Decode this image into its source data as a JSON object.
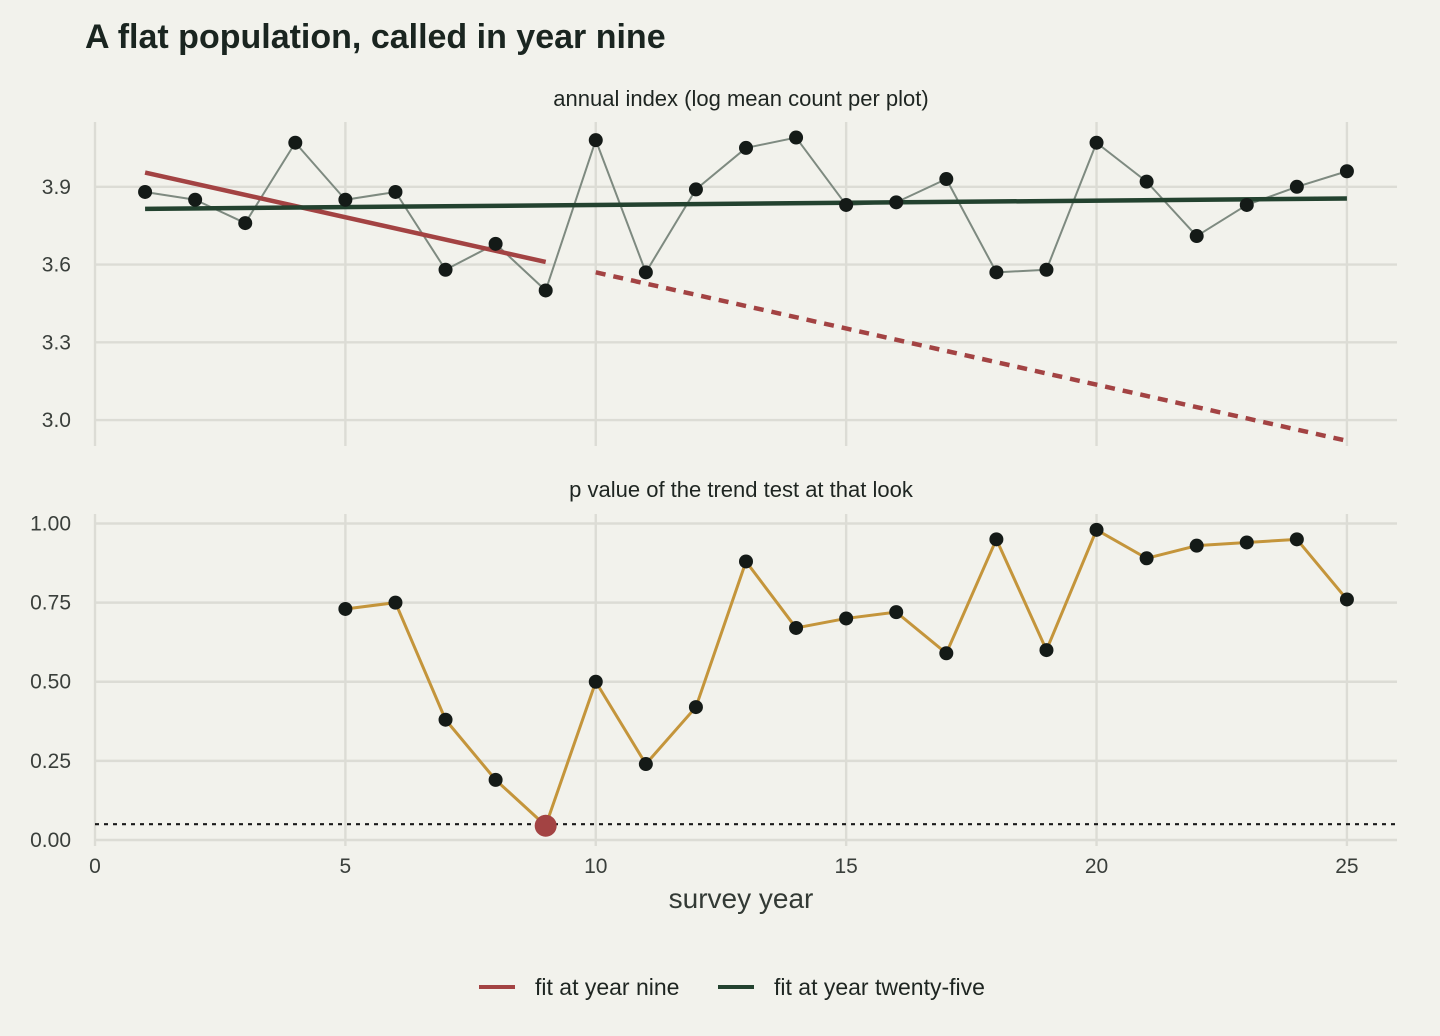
{
  "chart_data": [
    {
      "type": "line",
      "title": "A flat population, called in year nine",
      "subtitle": "annual index (log mean count per plot)",
      "xlabel": "survey year",
      "ylabel": "",
      "xlim": [
        0,
        26
      ],
      "ylim": [
        2.9,
        4.15
      ],
      "x_ticks": [
        0,
        5,
        10,
        15,
        20,
        25
      ],
      "y_ticks": [
        3.0,
        3.3,
        3.6,
        3.9
      ],
      "y_tick_labels": [
        "3.0",
        "3.3",
        "3.6",
        "3.9"
      ],
      "grid": true,
      "series": [
        {
          "color": "#7e8a80",
          "x": [
            1,
            2,
            3,
            4,
            5,
            6,
            7,
            8,
            9,
            10,
            11,
            12,
            13,
            14,
            15,
            16,
            17,
            18,
            19,
            20,
            21,
            22,
            23,
            24,
            25
          ],
          "y": [
            3.88,
            3.85,
            3.76,
            4.07,
            3.85,
            3.88,
            3.58,
            3.68,
            3.5,
            4.08,
            3.57,
            3.89,
            4.05,
            4.09,
            3.83,
            3.84,
            3.93,
            3.57,
            3.58,
            4.07,
            3.92,
            3.71,
            3.83,
            3.9,
            3.96
          ]
        },
        {
          "name": "fit at year nine",
          "color": "#a34343",
          "style": "solid",
          "x": [
            1,
            9
          ],
          "y": [
            3.955,
            3.61
          ]
        },
        {
          "color": "#a34343",
          "style": "dashed",
          "x": [
            10,
            25
          ],
          "y": [
            3.57,
            2.92
          ]
        },
        {
          "name": "fit at year twenty-five",
          "color": "#23422f",
          "style": "solid",
          "x": [
            1,
            25
          ],
          "y": [
            3.815,
            3.855
          ]
        }
      ]
    },
    {
      "type": "line",
      "subtitle": "p value of the trend test at that look",
      "xlabel": "survey year",
      "ylabel": "",
      "xlim": [
        0,
        26
      ],
      "ylim": [
        0,
        1.03
      ],
      "x_ticks": [
        0,
        5,
        10,
        15,
        20,
        25
      ],
      "y_ticks": [
        0.0,
        0.25,
        0.5,
        0.75,
        1.0
      ],
      "y_tick_labels": [
        "0.00",
        "0.25",
        "0.50",
        "0.75",
        "1.00"
      ],
      "grid": true,
      "series": [
        {
          "color": "#c4953b",
          "x": [
            5,
            6,
            7,
            8,
            9,
            10,
            11,
            12,
            13,
            14,
            15,
            16,
            17,
            18,
            19,
            20,
            21,
            22,
            23,
            24,
            25
          ],
          "y": [
            0.73,
            0.75,
            0.38,
            0.19,
            0.045,
            0.5,
            0.24,
            0.42,
            0.88,
            0.67,
            0.7,
            0.72,
            0.59,
            0.95,
            0.6,
            0.98,
            0.89,
            0.93,
            0.94,
            0.95,
            0.76
          ]
        }
      ],
      "highlight": {
        "x": 9,
        "y": 0.045,
        "color": "#a34343"
      },
      "reference_line": {
        "y": 0.05,
        "style": "dotted",
        "color": "#1a1a1a"
      }
    }
  ],
  "legend": {
    "position": "bottom",
    "items": [
      {
        "label": "fit at year nine",
        "color": "#a34343"
      },
      {
        "label": "fit at year twenty-five",
        "color": "#23422f"
      }
    ]
  },
  "point_color": "#141a17"
}
